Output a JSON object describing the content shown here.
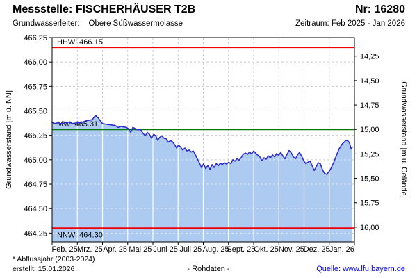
{
  "header": {
    "title": "Messstelle: FISCHERHÄUSER T2B",
    "number": "Nr: 16280",
    "aquifer_label": "Grundwasserleiter:",
    "aquifer_value": "Obere Süßwassermolasse",
    "period": "Zeitraum: Feb 2025 - Jan 2026"
  },
  "footer": {
    "footnote": "* Abflussjahr (2003-2024)",
    "created": "erstellt:  15.01.2026",
    "center_label": "- Rohdaten -",
    "source": "Quelle: www.lfu.bayern.de"
  },
  "chart_data": {
    "type": "area",
    "title": "",
    "grid_color": "#c9c9c9",
    "plot_bg": "#ffffff",
    "border_color": "#000000",
    "ylim": [
      464.16,
      466.25
    ],
    "y_axis_left": {
      "label": "Grundwasserstand [m ü. NN]",
      "ticks": [
        {
          "value": 466.25,
          "label": "466,25"
        },
        {
          "value": 466.0,
          "label": "466,00"
        },
        {
          "value": 465.75,
          "label": "465,75"
        },
        {
          "value": 465.5,
          "label": "465,50"
        },
        {
          "value": 465.25,
          "label": "465,25"
        },
        {
          "value": 465.0,
          "label": "465,00"
        },
        {
          "value": 464.75,
          "label": "464,75"
        },
        {
          "value": 464.5,
          "label": "464,50"
        },
        {
          "value": 464.25,
          "label": "464,25"
        }
      ]
    },
    "y_axis_right": {
      "label": "Grundwasserstand [m u. Gelände]",
      "ticks": [
        {
          "value": 466.06,
          "label": "14,25"
        },
        {
          "value": 465.81,
          "label": "14,50"
        },
        {
          "value": 465.56,
          "label": "14,75"
        },
        {
          "value": 465.31,
          "label": "15,00"
        },
        {
          "value": 465.06,
          "label": "15,25"
        },
        {
          "value": 464.81,
          "label": "15,50"
        },
        {
          "value": 464.56,
          "label": "15,75"
        },
        {
          "value": 464.31,
          "label": "16,00"
        }
      ]
    },
    "x_axis": {
      "n_months": 12,
      "month_labels": [
        "Feb. 25",
        "Mrz. 25",
        "Apr. 25",
        "Mai 25",
        "Juni 25",
        "Juli 25",
        "Aug. 25",
        "Sept. 25",
        "Okt. 25",
        "Nov. 25",
        "Dez. 25",
        "Jan. 26"
      ]
    },
    "reference_lines": [
      {
        "id": "hhw",
        "label": "HHW: 466.15",
        "value": 466.15,
        "color": "#ee0000",
        "label_pos": "above"
      },
      {
        "id": "mw",
        "label": "MW: 465.31",
        "value": 465.31,
        "color": "#007a00",
        "label_pos": "above"
      },
      {
        "id": "nnw",
        "label": "NNW: 464.30",
        "value": 464.3,
        "color": "#ee0000",
        "label_pos": "below"
      }
    ],
    "series": [
      {
        "name": "Rohdaten",
        "line_color": "#2b2bd0",
        "fill_color": "#adcbf1",
        "points": [
          [
            0.0,
            465.38
          ],
          [
            0.009,
            465.37
          ],
          [
            0.021,
            465.38
          ],
          [
            0.032,
            465.365
          ],
          [
            0.044,
            465.38
          ],
          [
            0.055,
            465.385
          ],
          [
            0.067,
            465.37
          ],
          [
            0.078,
            465.375
          ],
          [
            0.09,
            465.38
          ],
          [
            0.101,
            465.385
          ],
          [
            0.113,
            465.4
          ],
          [
            0.124,
            465.405
          ],
          [
            0.133,
            465.41
          ],
          [
            0.14,
            465.44
          ],
          [
            0.145,
            465.45
          ],
          [
            0.152,
            465.43
          ],
          [
            0.159,
            465.4
          ],
          [
            0.166,
            465.37
          ],
          [
            0.175,
            465.365
          ],
          [
            0.186,
            465.36
          ],
          [
            0.198,
            465.355
          ],
          [
            0.209,
            465.35
          ],
          [
            0.218,
            465.33
          ],
          [
            0.228,
            465.34
          ],
          [
            0.237,
            465.335
          ],
          [
            0.246,
            465.33
          ],
          [
            0.253,
            465.315
          ],
          [
            0.26,
            465.28
          ],
          [
            0.267,
            465.33
          ],
          [
            0.274,
            465.32
          ],
          [
            0.283,
            465.305
          ],
          [
            0.292,
            465.31
          ],
          [
            0.301,
            465.27
          ],
          [
            0.308,
            465.245
          ],
          [
            0.315,
            465.28
          ],
          [
            0.322,
            465.26
          ],
          [
            0.329,
            465.22
          ],
          [
            0.336,
            465.26
          ],
          [
            0.343,
            465.245
          ],
          [
            0.349,
            465.2
          ],
          [
            0.356,
            465.23
          ],
          [
            0.363,
            465.245
          ],
          [
            0.37,
            465.22
          ],
          [
            0.377,
            465.215
          ],
          [
            0.384,
            465.18
          ],
          [
            0.391,
            465.195
          ],
          [
            0.398,
            465.185
          ],
          [
            0.405,
            465.155
          ],
          [
            0.412,
            465.12
          ],
          [
            0.418,
            465.15
          ],
          [
            0.425,
            465.13
          ],
          [
            0.432,
            465.1
          ],
          [
            0.439,
            465.12
          ],
          [
            0.446,
            465.09
          ],
          [
            0.453,
            465.1
          ],
          [
            0.46,
            465.08
          ],
          [
            0.467,
            465.09
          ],
          [
            0.474,
            465.05
          ],
          [
            0.48,
            465.01
          ],
          [
            0.487,
            464.97
          ],
          [
            0.494,
            464.92
          ],
          [
            0.501,
            464.96
          ],
          [
            0.508,
            464.91
          ],
          [
            0.515,
            464.94
          ],
          [
            0.522,
            464.9
          ],
          [
            0.529,
            464.95
          ],
          [
            0.536,
            464.92
          ],
          [
            0.543,
            464.96
          ],
          [
            0.55,
            464.94
          ],
          [
            0.556,
            464.965
          ],
          [
            0.563,
            464.95
          ],
          [
            0.57,
            464.97
          ],
          [
            0.577,
            464.955
          ],
          [
            0.584,
            464.975
          ],
          [
            0.591,
            464.96
          ],
          [
            0.598,
            465.0
          ],
          [
            0.605,
            464.985
          ],
          [
            0.612,
            465.01
          ],
          [
            0.618,
            464.995
          ],
          [
            0.625,
            465.02
          ],
          [
            0.632,
            465.055
          ],
          [
            0.639,
            465.07
          ],
          [
            0.646,
            465.055
          ],
          [
            0.653,
            465.08
          ],
          [
            0.66,
            465.06
          ],
          [
            0.667,
            465.09
          ],
          [
            0.674,
            465.065
          ],
          [
            0.681,
            465.045
          ],
          [
            0.687,
            465.03
          ],
          [
            0.694,
            464.99
          ],
          [
            0.701,
            465.02
          ],
          [
            0.708,
            465.005
          ],
          [
            0.715,
            465.04
          ],
          [
            0.722,
            465.02
          ],
          [
            0.729,
            465.05
          ],
          [
            0.736,
            465.03
          ],
          [
            0.743,
            465.065
          ],
          [
            0.749,
            465.045
          ],
          [
            0.756,
            465.075
          ],
          [
            0.763,
            465.04
          ],
          [
            0.77,
            465.01
          ],
          [
            0.777,
            465.055
          ],
          [
            0.784,
            465.095
          ],
          [
            0.791,
            465.07
          ],
          [
            0.798,
            465.03
          ],
          [
            0.805,
            465.01
          ],
          [
            0.812,
            465.05
          ],
          [
            0.818,
            465.075
          ],
          [
            0.825,
            465.04
          ],
          [
            0.832,
            464.99
          ],
          [
            0.839,
            464.96
          ],
          [
            0.846,
            464.975
          ],
          [
            0.853,
            464.985
          ],
          [
            0.86,
            464.94
          ],
          [
            0.867,
            464.89
          ],
          [
            0.874,
            464.93
          ],
          [
            0.88,
            464.97
          ],
          [
            0.887,
            464.96
          ],
          [
            0.894,
            464.9
          ],
          [
            0.901,
            464.86
          ],
          [
            0.908,
            464.85
          ],
          [
            0.915,
            464.875
          ],
          [
            0.922,
            464.91
          ],
          [
            0.931,
            464.97
          ],
          [
            0.94,
            465.04
          ],
          [
            0.949,
            465.11
          ],
          [
            0.959,
            465.16
          ],
          [
            0.966,
            465.18
          ],
          [
            0.972,
            465.2
          ],
          [
            0.979,
            465.19
          ],
          [
            0.984,
            465.17
          ],
          [
            0.989,
            465.11
          ],
          [
            0.993,
            465.13
          ]
        ]
      }
    ]
  }
}
